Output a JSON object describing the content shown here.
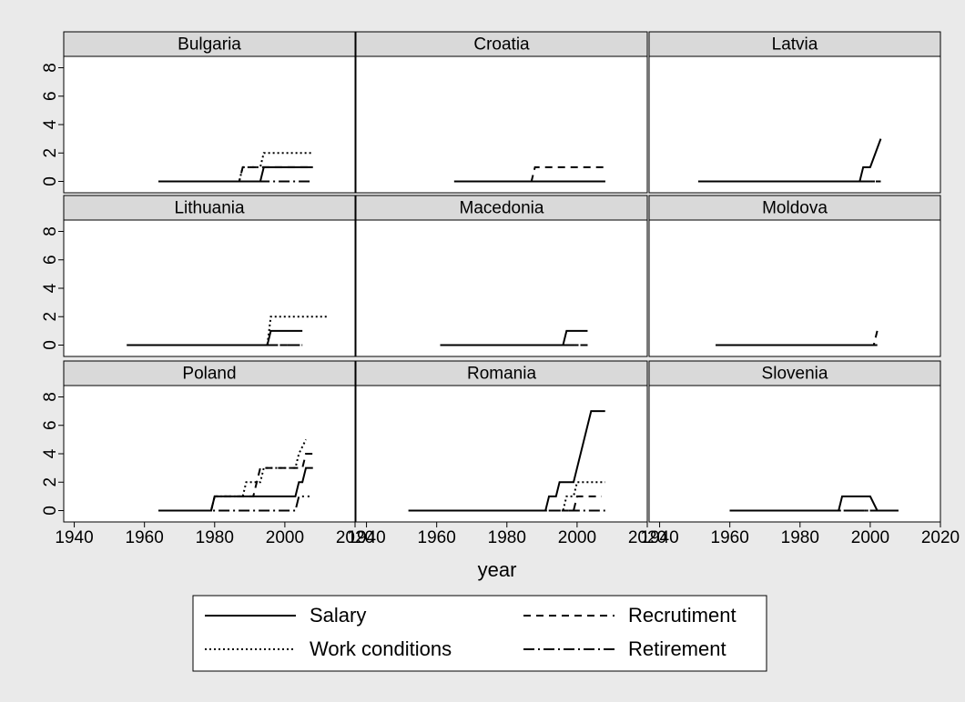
{
  "chart_data": {
    "type": "line",
    "xlabel": "year",
    "xlim": [
      1937,
      2020
    ],
    "xticks": [
      1940,
      1960,
      1980,
      2000,
      2020
    ],
    "ylim": [
      -0.8,
      8.8
    ],
    "yticks": [
      0,
      2,
      4,
      6,
      8
    ],
    "series": [
      {
        "name": "Salary",
        "color": "#000000",
        "dash": "none"
      },
      {
        "name": "Recrutiment",
        "color": "#000000",
        "dash": "8,6"
      },
      {
        "name": "Work conditions",
        "color": "#000000",
        "dash": "2,3"
      },
      {
        "name": "Retirement",
        "color": "#000000",
        "dash": "12,4,2,4"
      }
    ],
    "panels": [
      {
        "title": "Bulgaria",
        "series": [
          {
            "x": [
              1964,
              1993,
              1994,
              2008
            ],
            "values": [
              0,
              0,
              1,
              1
            ]
          },
          {
            "x": [
              1964,
              1987,
              1988,
              2008
            ],
            "values": [
              0,
              0,
              1,
              1
            ]
          },
          {
            "x": [
              1964,
              1987,
              1988,
              1993,
              1994,
              2008
            ],
            "values": [
              0,
              0,
              1,
              1,
              2,
              2
            ]
          },
          {
            "x": [
              1964,
              2008
            ],
            "values": [
              0,
              0
            ]
          }
        ]
      },
      {
        "title": "Croatia",
        "series": [
          {
            "x": [
              1965,
              2008
            ],
            "values": [
              0,
              0
            ]
          },
          {
            "x": [
              1965,
              1987,
              1988,
              2008
            ],
            "values": [
              0,
              0,
              1,
              1
            ]
          },
          {
            "x": [
              1965,
              2008
            ],
            "values": [
              0,
              0
            ]
          },
          {
            "x": [
              1965,
              2008
            ],
            "values": [
              0,
              0
            ]
          }
        ]
      },
      {
        "title": "Latvia",
        "series": [
          {
            "x": [
              1951,
              1997,
              1998,
              2000,
              2003
            ],
            "values": [
              0,
              0,
              1,
              1,
              3
            ]
          },
          {
            "x": [
              1951,
              2003
            ],
            "values": [
              0,
              0
            ]
          },
          {
            "x": [
              1951,
              2003
            ],
            "values": [
              0,
              0
            ]
          },
          {
            "x": [
              1951,
              2003
            ],
            "values": [
              0,
              0
            ]
          }
        ]
      },
      {
        "title": "Lithuania",
        "series": [
          {
            "x": [
              1955,
              1995,
              1996,
              2005
            ],
            "values": [
              0,
              0,
              1,
              1
            ]
          },
          {
            "x": [
              1955,
              2005
            ],
            "values": [
              0,
              0
            ]
          },
          {
            "x": [
              1955,
              1995,
              1996,
              2012
            ],
            "values": [
              0,
              0,
              2,
              2
            ]
          },
          {
            "x": [
              1955,
              2005
            ],
            "values": [
              0,
              0
            ]
          }
        ]
      },
      {
        "title": "Macedonia",
        "series": [
          {
            "x": [
              1961,
              1996,
              1997,
              2003
            ],
            "values": [
              0,
              0,
              1,
              1
            ]
          },
          {
            "x": [
              1961,
              2003
            ],
            "values": [
              0,
              0
            ]
          },
          {
            "x": [
              1961,
              2003
            ],
            "values": [
              0,
              0
            ]
          },
          {
            "x": [
              1961,
              2003
            ],
            "values": [
              0,
              0
            ]
          }
        ]
      },
      {
        "title": "Moldova",
        "series": [
          {
            "x": [
              1956,
              2002
            ],
            "values": [
              0,
              0
            ]
          },
          {
            "x": [
              1956,
              2001,
              2002
            ],
            "values": [
              0,
              0,
              1
            ]
          },
          {
            "x": [
              1956,
              2002
            ],
            "values": [
              0,
              0
            ]
          },
          {
            "x": [
              1956,
              2002
            ],
            "values": [
              0,
              0
            ]
          }
        ]
      },
      {
        "title": "Poland",
        "series": [
          {
            "x": [
              1964,
              1979,
              1980,
              2003,
              2004,
              2005,
              2006,
              2008
            ],
            "values": [
              0,
              0,
              1,
              1,
              2,
              2,
              3,
              3
            ]
          },
          {
            "x": [
              1964,
              1979,
              1980,
              1991,
              1993,
              2005,
              2006,
              2008
            ],
            "values": [
              0,
              0,
              1,
              1,
              3,
              3,
              4,
              4
            ]
          },
          {
            "x": [
              1964,
              1979,
              1980,
              1988,
              1989,
              1993,
              1994,
              2003,
              2004,
              2006
            ],
            "values": [
              0,
              0,
              1,
              1,
              2,
              2,
              3,
              3,
              4,
              5
            ]
          },
          {
            "x": [
              1964,
              2003,
              2004,
              2007
            ],
            "values": [
              0,
              0,
              1,
              1
            ]
          }
        ]
      },
      {
        "title": "Romania",
        "series": [
          {
            "x": [
              1952,
              1991,
              1992,
              1994,
              1995,
              1999,
              2004,
              2008
            ],
            "values": [
              0,
              0,
              1,
              1,
              2,
              2,
              7,
              7
            ]
          },
          {
            "x": [
              1952,
              1999,
              2000,
              2007
            ],
            "values": [
              0,
              0,
              1,
              1
            ]
          },
          {
            "x": [
              1952,
              1996,
              1997,
              1999,
              2000,
              2008
            ],
            "values": [
              0,
              0,
              1,
              1,
              2,
              2
            ]
          },
          {
            "x": [
              1952,
              2008
            ],
            "values": [
              0,
              0
            ]
          }
        ]
      },
      {
        "title": "Slovenia",
        "series": [
          {
            "x": [
              1960,
              1991,
              1992,
              2000,
              2002,
              2008
            ],
            "values": [
              0,
              0,
              1,
              1,
              0,
              0
            ]
          },
          {
            "x": [
              1960,
              2008
            ],
            "values": [
              0,
              0
            ]
          },
          {
            "x": [
              1960,
              2008
            ],
            "values": [
              0,
              0
            ]
          },
          {
            "x": [
              1960,
              2008
            ],
            "values": [
              0,
              0
            ]
          }
        ]
      }
    ]
  }
}
